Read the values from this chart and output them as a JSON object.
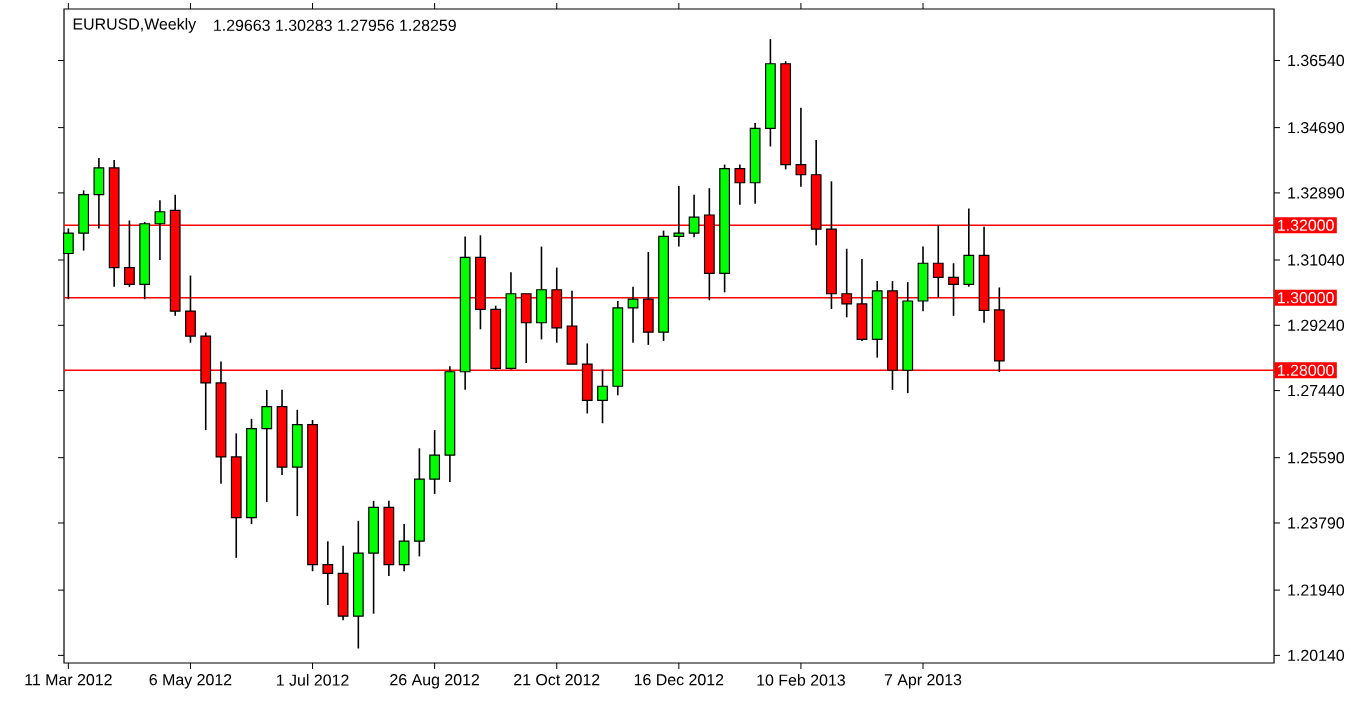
{
  "chart_data": {
    "type": "candlestick",
    "title": "EURUSD,Weekly",
    "subtitle": "1.29663 1.30283 1.27956 1.28259",
    "x": [
      "2012-03-11",
      "2012-03-18",
      "2012-03-25",
      "2012-04-01",
      "2012-04-08",
      "2012-04-15",
      "2012-04-22",
      "2012-04-29",
      "2012-05-06",
      "2012-05-13",
      "2012-05-20",
      "2012-05-27",
      "2012-06-03",
      "2012-06-10",
      "2012-06-17",
      "2012-06-24",
      "2012-07-01",
      "2012-07-08",
      "2012-07-15",
      "2012-07-22",
      "2012-07-29",
      "2012-08-05",
      "2012-08-12",
      "2012-08-19",
      "2012-08-26",
      "2012-09-02",
      "2012-09-09",
      "2012-09-16",
      "2012-09-23",
      "2012-09-30",
      "2012-10-07",
      "2012-10-14",
      "2012-10-21",
      "2012-10-28",
      "2012-11-04",
      "2012-11-11",
      "2012-11-18",
      "2012-11-25",
      "2012-12-02",
      "2012-12-09",
      "2012-12-16",
      "2012-12-23",
      "2012-12-30",
      "2013-01-06",
      "2013-01-13",
      "2013-01-20",
      "2013-01-27",
      "2013-02-03",
      "2013-02-10",
      "2013-02-17",
      "2013-02-24",
      "2013-03-03",
      "2013-03-10",
      "2013-03-17",
      "2013-03-24",
      "2013-03-31",
      "2013-04-07",
      "2013-04-14",
      "2013-04-21",
      "2013-04-28",
      "2013-05-05",
      "2013-05-12"
    ],
    "ohlc": [
      [
        1.3122,
        1.3191,
        1.2996,
        1.3178
      ],
      [
        1.3178,
        1.3296,
        1.313,
        1.3284
      ],
      [
        1.3284,
        1.3385,
        1.3191,
        1.3358
      ],
      [
        1.3358,
        1.338,
        1.303,
        1.3083
      ],
      [
        1.3083,
        1.3213,
        1.303,
        1.3037
      ],
      [
        1.3037,
        1.3209,
        1.2996,
        1.3204
      ],
      [
        1.3204,
        1.3269,
        1.3104,
        1.3237
      ],
      [
        1.3241,
        1.3284,
        1.295,
        1.2963
      ],
      [
        1.2963,
        1.3061,
        1.2876,
        1.2894
      ],
      [
        1.2894,
        1.2904,
        1.2635,
        1.2765
      ],
      [
        1.2765,
        1.2824,
        1.2487,
        1.2561
      ],
      [
        1.2561,
        1.2626,
        1.2283,
        1.2394
      ],
      [
        1.2394,
        1.2666,
        1.2376,
        1.2639
      ],
      [
        1.2639,
        1.2746,
        1.2437,
        1.27
      ],
      [
        1.27,
        1.2746,
        1.2511,
        1.2533
      ],
      [
        1.2533,
        1.2691,
        1.2398,
        1.265
      ],
      [
        1.265,
        1.2663,
        1.2246,
        1.2264
      ],
      [
        1.2264,
        1.2329,
        1.2153,
        1.224
      ],
      [
        1.224,
        1.2316,
        1.2111,
        1.2122
      ],
      [
        1.2122,
        1.2385,
        1.2033,
        1.2296
      ],
      [
        1.2296,
        1.244,
        1.2129,
        1.2422
      ],
      [
        1.2422,
        1.244,
        1.2233,
        1.2264
      ],
      [
        1.2264,
        1.2376,
        1.2246,
        1.2329
      ],
      [
        1.2329,
        1.2585,
        1.2287,
        1.25
      ],
      [
        1.25,
        1.2635,
        1.2459,
        1.2566
      ],
      [
        1.2566,
        1.2811,
        1.2492,
        1.2796
      ],
      [
        1.2796,
        1.3169,
        1.2746,
        1.3111
      ],
      [
        1.3111,
        1.3172,
        1.2913,
        1.2968
      ],
      [
        1.2968,
        1.2978,
        1.2802,
        1.2805
      ],
      [
        1.2805,
        1.307,
        1.2802,
        1.3011
      ],
      [
        1.3011,
        1.3011,
        1.282,
        1.2931
      ],
      [
        1.2931,
        1.3141,
        1.2885,
        1.3022
      ],
      [
        1.3022,
        1.3083,
        1.2876,
        1.2917
      ],
      [
        1.2922,
        1.3019,
        1.2817,
        1.2817
      ],
      [
        1.2817,
        1.2874,
        1.2681,
        1.2717
      ],
      [
        1.2717,
        1.2802,
        1.2654,
        1.2756
      ],
      [
        1.2756,
        1.2991,
        1.2731,
        1.2972
      ],
      [
        1.2972,
        1.303,
        1.2876,
        1.2996
      ],
      [
        1.2996,
        1.3126,
        1.287,
        1.2905
      ],
      [
        1.2905,
        1.3185,
        1.2881,
        1.3169
      ],
      [
        1.3169,
        1.3308,
        1.3141,
        1.3178
      ],
      [
        1.3178,
        1.3284,
        1.3167,
        1.3222
      ],
      [
        1.3228,
        1.3302,
        1.2993,
        1.3067
      ],
      [
        1.3067,
        1.3367,
        1.3015,
        1.3356
      ],
      [
        1.3356,
        1.3367,
        1.3256,
        1.3317
      ],
      [
        1.3317,
        1.3482,
        1.3259,
        1.3467
      ],
      [
        1.3467,
        1.3713,
        1.3417,
        1.3645
      ],
      [
        1.3645,
        1.3652,
        1.3354,
        1.3367
      ],
      [
        1.3367,
        1.3524,
        1.3306,
        1.3339
      ],
      [
        1.3339,
        1.3435,
        1.3145,
        1.3189
      ],
      [
        1.3189,
        1.3321,
        1.2969,
        1.3011
      ],
      [
        1.3011,
        1.3135,
        1.2946,
        1.2983
      ],
      [
        1.2983,
        1.3107,
        1.2881,
        1.2885
      ],
      [
        1.2885,
        1.3046,
        1.2835,
        1.3019
      ],
      [
        1.3019,
        1.3046,
        1.2746,
        1.28
      ],
      [
        1.28,
        1.3043,
        1.2737,
        1.2991
      ],
      [
        1.2991,
        1.3141,
        1.2963,
        1.3095
      ],
      [
        1.3095,
        1.32,
        1.3,
        1.3056
      ],
      [
        1.3056,
        1.3095,
        1.295,
        1.3037
      ],
      [
        1.3037,
        1.3246,
        1.303,
        1.3117
      ],
      [
        1.3117,
        1.3196,
        1.2931,
        1.2965
      ],
      [
        1.29663,
        1.30283,
        1.27956,
        1.28259
      ]
    ],
    "colors": [
      "#00ff00",
      "#00ff00",
      "#00ff00",
      "#ff0000",
      "#ff0000",
      "#00ff00",
      "#00ff00",
      "#ff0000",
      "#ff0000",
      "#ff0000",
      "#ff0000",
      "#ff0000",
      "#00ff00",
      "#00ff00",
      "#ff0000",
      "#00ff00",
      "#ff0000",
      "#ff0000",
      "#ff0000",
      "#00ff00",
      "#00ff00",
      "#ff0000",
      "#00ff00",
      "#00ff00",
      "#00ff00",
      "#00ff00",
      "#00ff00",
      "#ff0000",
      "#ff0000",
      "#00ff00",
      "#ff0000",
      "#00ff00",
      "#ff0000",
      "#ff0000",
      "#ff0000",
      "#00ff00",
      "#00ff00",
      "#00ff00",
      "#ff0000",
      "#00ff00",
      "#00ff00",
      "#00ff00",
      "#ff0000",
      "#00ff00",
      "#ff0000",
      "#00ff00",
      "#00ff00",
      "#ff0000",
      "#ff0000",
      "#ff0000",
      "#ff0000",
      "#ff0000",
      "#ff0000",
      "#00ff00",
      "#ff0000",
      "#00ff00",
      "#00ff00",
      "#ff0000",
      "#ff0000",
      "#00ff00",
      "#ff0000",
      "#ff0000"
    ],
    "xlim": [
      "2012-03-09",
      "2013-09-15"
    ],
    "xticks": [
      {
        "value": "2012-03-11",
        "label": "11 Mar 2012"
      },
      {
        "value": "2012-05-06",
        "label": "6 May 2012"
      },
      {
        "value": "2012-07-01",
        "label": "1 Jul 2012"
      },
      {
        "value": "2012-08-26",
        "label": "26 Aug 2012"
      },
      {
        "value": "2012-10-21",
        "label": "21 Oct 2012"
      },
      {
        "value": "2012-12-16",
        "label": "16 Dec 2012"
      },
      {
        "value": "2013-02-10",
        "label": "10 Feb 2013"
      },
      {
        "value": "2013-04-07",
        "label": "7 Apr 2013"
      }
    ],
    "ylim": [
      1.1993,
      1.3796
    ],
    "yticks": [
      {
        "value": 1.2014,
        "label": "1.20140"
      },
      {
        "value": 1.2194,
        "label": "1.21940"
      },
      {
        "value": 1.2379,
        "label": "1.23790"
      },
      {
        "value": 1.2559,
        "label": "1.25590"
      },
      {
        "value": 1.2744,
        "label": "1.27440"
      },
      {
        "value": 1.2924,
        "label": "1.29240"
      },
      {
        "value": 1.3104,
        "label": "1.31040"
      },
      {
        "value": 1.3289,
        "label": "1.32890"
      },
      {
        "value": 1.3469,
        "label": "1.34690"
      },
      {
        "value": 1.3654,
        "label": "1.36540"
      }
    ],
    "ref_lines": [
      {
        "axis": "y",
        "value": 1.32,
        "label": "1.32000",
        "color": "#ff0000"
      },
      {
        "axis": "y",
        "value": 1.3,
        "label": "1.30000",
        "color": "#ff0000"
      },
      {
        "axis": "y",
        "value": 1.28,
        "label": "1.28000",
        "color": "#ff0000"
      }
    ]
  }
}
